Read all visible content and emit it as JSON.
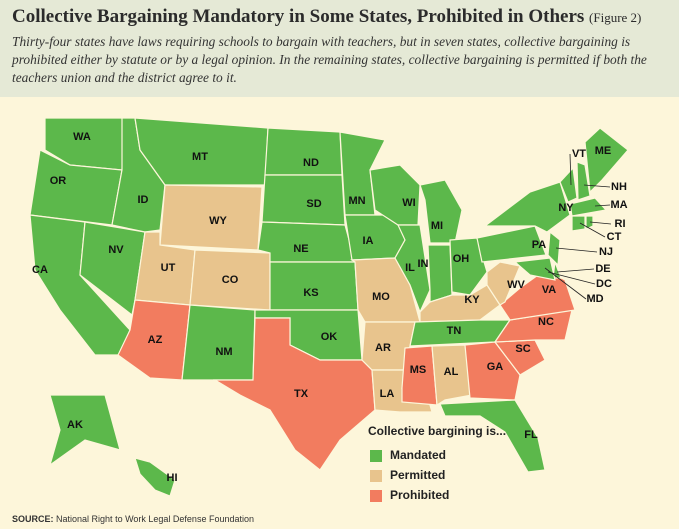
{
  "header": {
    "title": "Collective Bargaining Mandatory in Some States, Prohibited in Others",
    "figure": "(Figure 2)",
    "subtitle": "Thirty-four states have laws requiring schools to bargain with teachers, but in seven states, collective bargaining is prohibited either by statute or by a legal opinion. In the remaining states, collective bargaining is permitted if both the teachers union and the district agree to it."
  },
  "legend": {
    "title": "Collective bargining is...",
    "items": [
      {
        "label": "Mandated",
        "color": "#5cb84b"
      },
      {
        "label": "Permitted",
        "color": "#e8c48d"
      },
      {
        "label": "Prohibited",
        "color": "#f27c5f"
      }
    ]
  },
  "states": [
    {
      "label": "WA",
      "status": "Mandated"
    },
    {
      "label": "OR",
      "status": "Mandated"
    },
    {
      "label": "CA",
      "status": "Mandated"
    },
    {
      "label": "NV",
      "status": "Mandated"
    },
    {
      "label": "ID",
      "status": "Mandated"
    },
    {
      "label": "MT",
      "status": "Mandated"
    },
    {
      "label": "WY",
      "status": "Permitted"
    },
    {
      "label": "UT",
      "status": "Permitted"
    },
    {
      "label": "CO",
      "status": "Permitted"
    },
    {
      "label": "AZ",
      "status": "Prohibited"
    },
    {
      "label": "NM",
      "status": "Mandated"
    },
    {
      "label": "ND",
      "status": "Mandated"
    },
    {
      "label": "SD",
      "status": "Mandated"
    },
    {
      "label": "NE",
      "status": "Mandated"
    },
    {
      "label": "KS",
      "status": "Mandated"
    },
    {
      "label": "OK",
      "status": "Mandated"
    },
    {
      "label": "TX",
      "status": "Prohibited"
    },
    {
      "label": "MN",
      "status": "Mandated"
    },
    {
      "label": "IA",
      "status": "Mandated"
    },
    {
      "label": "MO",
      "status": "Permitted"
    },
    {
      "label": "AR",
      "status": "Permitted"
    },
    {
      "label": "LA",
      "status": "Permitted"
    },
    {
      "label": "WI",
      "status": "Mandated"
    },
    {
      "label": "IL",
      "status": "Mandated"
    },
    {
      "label": "MI",
      "status": "Mandated"
    },
    {
      "label": "IN",
      "status": "Mandated"
    },
    {
      "label": "OH",
      "status": "Mandated"
    },
    {
      "label": "KY",
      "status": "Permitted"
    },
    {
      "label": "TN",
      "status": "Mandated"
    },
    {
      "label": "MS",
      "status": "Prohibited"
    },
    {
      "label": "AL",
      "status": "Permitted"
    },
    {
      "label": "GA",
      "status": "Prohibited"
    },
    {
      "label": "SC",
      "status": "Prohibited"
    },
    {
      "label": "NC",
      "status": "Prohibited"
    },
    {
      "label": "VA",
      "status": "Prohibited"
    },
    {
      "label": "WV",
      "status": "Permitted"
    },
    {
      "label": "PA",
      "status": "Mandated"
    },
    {
      "label": "NY",
      "status": "Mandated"
    },
    {
      "label": "VT",
      "status": "Mandated"
    },
    {
      "label": "NH",
      "status": "Mandated"
    },
    {
      "label": "ME",
      "status": "Mandated"
    },
    {
      "label": "MA",
      "status": "Mandated"
    },
    {
      "label": "RI",
      "status": "Mandated"
    },
    {
      "label": "CT",
      "status": "Mandated"
    },
    {
      "label": "NJ",
      "status": "Mandated"
    },
    {
      "label": "DE",
      "status": "Mandated"
    },
    {
      "label": "DC",
      "status": "Mandated"
    },
    {
      "label": "MD",
      "status": "Mandated"
    },
    {
      "label": "FL",
      "status": "Mandated"
    },
    {
      "label": "AK",
      "status": "Mandated"
    },
    {
      "label": "HI",
      "status": "Mandated"
    }
  ],
  "source": {
    "label": "SOURCE:",
    "text": "National Right to Work Legal Defense Foundation"
  }
}
